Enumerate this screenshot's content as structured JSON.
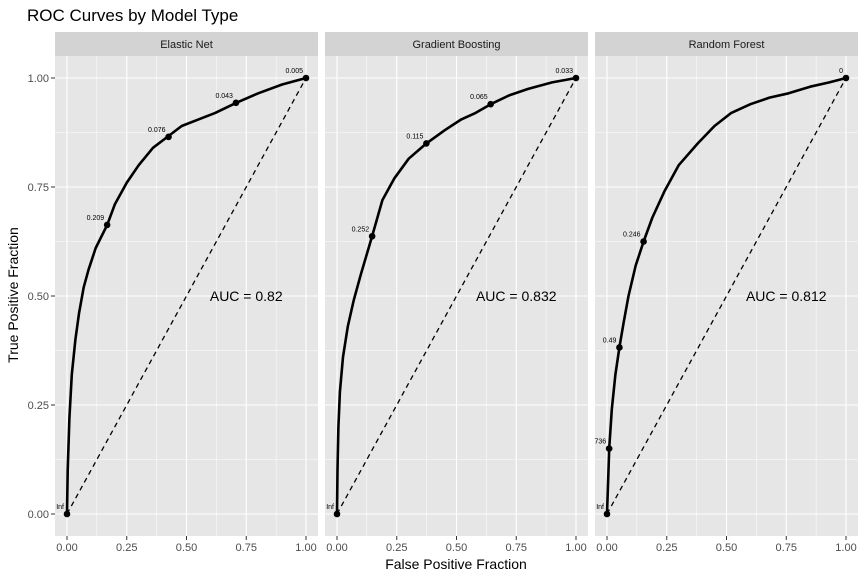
{
  "chart_data": {
    "type": "line",
    "title": "ROC Curves by Model Type",
    "xlabel": "False Positive Fraction",
    "ylabel": "True Positive Fraction",
    "xlim": [
      0,
      1
    ],
    "ylim": [
      0,
      1
    ],
    "x_ticks": [
      "0.00",
      "0.25",
      "0.50",
      "0.75",
      "1.00"
    ],
    "y_ticks": [
      "0.00",
      "0.25",
      "0.50",
      "0.75",
      "1.00"
    ],
    "grid": true,
    "legend": "none",
    "colors": {
      "panel_bg": "#e6e6e6",
      "strip_bg": "#d3d3d3",
      "grid": "#ffffff",
      "curve": "#000000",
      "text": "#000000",
      "tick_text": "#4d4d4d"
    },
    "panels": [
      {
        "facet": "Elastic Net",
        "auc_label": "AUC = 0.82",
        "curve": [
          [
            0,
            0
          ],
          [
            0.003,
            0.1
          ],
          [
            0.01,
            0.22
          ],
          [
            0.02,
            0.32
          ],
          [
            0.035,
            0.4
          ],
          [
            0.05,
            0.46
          ],
          [
            0.07,
            0.52
          ],
          [
            0.09,
            0.56
          ],
          [
            0.12,
            0.61
          ],
          [
            0.168,
            0.663
          ],
          [
            0.2,
            0.71
          ],
          [
            0.25,
            0.76
          ],
          [
            0.3,
            0.8
          ],
          [
            0.36,
            0.84
          ],
          [
            0.42,
            0.865
          ],
          [
            0.48,
            0.89
          ],
          [
            0.55,
            0.905
          ],
          [
            0.62,
            0.92
          ],
          [
            0.707,
            0.943
          ],
          [
            0.8,
            0.965
          ],
          [
            0.9,
            0.985
          ],
          [
            1,
            1
          ]
        ],
        "cutpoints": [
          {
            "label": "Inf",
            "x": 0.0,
            "y": 0.0
          },
          {
            "label": "0.209",
            "x": 0.168,
            "y": 0.663
          },
          {
            "label": "0.076",
            "x": 0.425,
            "y": 0.865
          },
          {
            "label": "0.043",
            "x": 0.707,
            "y": 0.943
          },
          {
            "label": "0.005",
            "x": 1.0,
            "y": 1.0
          }
        ]
      },
      {
        "facet": "Gradient Boosting",
        "auc_label": "AUC = 0.832",
        "curve": [
          [
            0,
            0
          ],
          [
            0.002,
            0.1
          ],
          [
            0.006,
            0.2
          ],
          [
            0.012,
            0.28
          ],
          [
            0.025,
            0.36
          ],
          [
            0.045,
            0.43
          ],
          [
            0.07,
            0.49
          ],
          [
            0.1,
            0.55
          ],
          [
            0.147,
            0.637
          ],
          [
            0.19,
            0.72
          ],
          [
            0.24,
            0.77
          ],
          [
            0.3,
            0.815
          ],
          [
            0.374,
            0.85
          ],
          [
            0.45,
            0.88
          ],
          [
            0.52,
            0.905
          ],
          [
            0.58,
            0.92
          ],
          [
            0.643,
            0.94
          ],
          [
            0.72,
            0.96
          ],
          [
            0.8,
            0.975
          ],
          [
            0.9,
            0.99
          ],
          [
            1,
            1
          ]
        ],
        "cutpoints": [
          {
            "label": "Inf",
            "x": 0.0,
            "y": 0.0
          },
          {
            "label": "0.252",
            "x": 0.147,
            "y": 0.637
          },
          {
            "label": "0.115",
            "x": 0.374,
            "y": 0.85
          },
          {
            "label": "0.065",
            "x": 0.643,
            "y": 0.94
          },
          {
            "label": "0.033",
            "x": 1.0,
            "y": 1.0
          }
        ]
      },
      {
        "facet": "Random Forest",
        "auc_label": "AUC = 0.812",
        "curve": [
          [
            0,
            0
          ],
          [
            0.005,
            0.08
          ],
          [
            0.009,
            0.15
          ],
          [
            0.02,
            0.24
          ],
          [
            0.035,
            0.32
          ],
          [
            0.052,
            0.382
          ],
          [
            0.07,
            0.44
          ],
          [
            0.09,
            0.5
          ],
          [
            0.12,
            0.57
          ],
          [
            0.153,
            0.625
          ],
          [
            0.19,
            0.68
          ],
          [
            0.24,
            0.74
          ],
          [
            0.3,
            0.8
          ],
          [
            0.38,
            0.85
          ],
          [
            0.45,
            0.89
          ],
          [
            0.52,
            0.92
          ],
          [
            0.6,
            0.94
          ],
          [
            0.68,
            0.955
          ],
          [
            0.76,
            0.965
          ],
          [
            0.85,
            0.98
          ],
          [
            0.93,
            0.99
          ],
          [
            1,
            1
          ]
        ],
        "cutpoints": [
          {
            "label": "Inf",
            "x": 0.0,
            "y": 0.0
          },
          {
            "label": "736",
            "x": 0.009,
            "y": 0.15
          },
          {
            "label": "0.49",
            "x": 0.052,
            "y": 0.382
          },
          {
            "label": "0.246",
            "x": 0.153,
            "y": 0.625
          },
          {
            "label": "0",
            "x": 1.0,
            "y": 1.0
          }
        ]
      }
    ]
  }
}
